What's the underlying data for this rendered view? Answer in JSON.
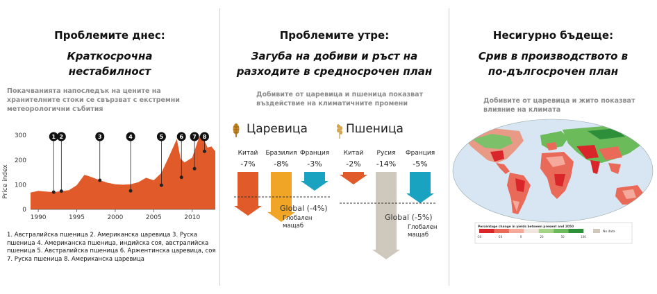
{
  "panel1": {
    "title": "Проблемите днес:",
    "subtitle_line1": "Краткосрочна",
    "subtitle_line2": "нестабилност",
    "desc_line1": "Покачванията напоследък на цените на",
    "desc_line2": "хранителните стоки се свързват с екстремни",
    "desc_line3": "метеорологични събития",
    "legend_line1": "1. Австралийска пшеница 2. Американска царевица 3. Руска",
    "legend_line2": "пшеница 4. Американска пшеница, индийска соя, австралийска",
    "legend_line3": "пшеница  5. Австралийска пшеница 6. Аржентинска царевица, соя",
    "legend_line4": "7. Руска пшеница 8. Американска царевица"
  },
  "chart_data": {
    "type": "area",
    "ylabel": "Price index",
    "xlim": [
      1989,
      2013
    ],
    "ylim": [
      0,
      320
    ],
    "xticks": [
      "1990",
      "1995",
      "2000",
      "2005",
      "2010"
    ],
    "yticks": [
      "0",
      "100",
      "200",
      "300"
    ],
    "x": [
      1989,
      1990,
      1991,
      1992,
      1993,
      1994,
      1995,
      1996,
      1997,
      1998,
      1999,
      2000,
      2001,
      2002,
      2003,
      2004,
      2005,
      2006,
      2007,
      2008,
      2008.5,
      2009,
      2010,
      2010.6,
      2011,
      2011.5,
      2012,
      2012.5,
      2013
    ],
    "y": [
      68,
      75,
      72,
      70,
      74,
      78,
      98,
      140,
      130,
      118,
      108,
      102,
      100,
      102,
      110,
      128,
      118,
      148,
      215,
      285,
      205,
      190,
      210,
      265,
      300,
      285,
      250,
      255,
      235
    ],
    "events": [
      {
        "label": "1",
        "x": 1992,
        "y": 70
      },
      {
        "label": "2",
        "x": 1993,
        "y": 74
      },
      {
        "label": "3",
        "x": 1998,
        "y": 118
      },
      {
        "label": "4",
        "x": 2002,
        "y": 75
      },
      {
        "label": "5",
        "x": 2006,
        "y": 98
      },
      {
        "label": "6",
        "x": 2008.6,
        "y": 130
      },
      {
        "label": "7",
        "x": 2010.3,
        "y": 165
      },
      {
        "label": "8",
        "x": 2011.6,
        "y": 235
      }
    ],
    "colors": {
      "fill": "#e05a2a",
      "marker": "#111111"
    }
  },
  "panel2": {
    "title": "Проблемите утре:",
    "subtitle_line1": "Загуба на добиви и ръст на",
    "subtitle_line2": "разходите в средносрочен план",
    "desc_line1": "Добивите от царевица и пшеница показват",
    "desc_line2": "въздействие на климатичните промени",
    "maize_title": "Царевица",
    "wheat_title": "Пшеница",
    "maize": [
      {
        "country": "Китай",
        "pct": "-7%",
        "value": -7,
        "color": "#e05a2a"
      },
      {
        "country": "Бразилия",
        "pct": "-8%",
        "value": -8,
        "color": "#f0a526"
      },
      {
        "country": "Франция",
        "pct": "-3%",
        "value": -3,
        "color": "#1aa3c0"
      }
    ],
    "wheat": [
      {
        "country": "Китай",
        "pct": "-2%",
        "value": -2,
        "color": "#e05a2a"
      },
      {
        "country": "Русия",
        "pct": "-14%",
        "value": -14,
        "color": "#cfc8bd"
      },
      {
        "country": "Франция",
        "pct": "-5%",
        "value": -5,
        "color": "#1aa3c0"
      }
    ],
    "maize_global": "Global (-4%)",
    "wheat_global": "Global (-5%)",
    "global_sub_line1": "Глобален",
    "global_sub_line2": "мащаб"
  },
  "panel3": {
    "title": "Несигурно бъдеще:",
    "subtitle_line1": "Срив в производството в",
    "subtitle_line2": "по-дългосрочен план",
    "desc_line1": "Добивите от царевица и жито показват",
    "desc_line2": "влияние на климата",
    "map_legend_title": "Percentage change in yields between present and 2050",
    "map_legend_nodata": "No data",
    "map_legend_ticks": [
      "-50",
      "-20",
      "0",
      "20",
      "50",
      "100"
    ],
    "map_colors": [
      "#d9262a",
      "#ea6a5a",
      "#f4a99a",
      "#f2e5df",
      "#a7d389",
      "#6cbb5b",
      "#2e8f3b"
    ]
  }
}
